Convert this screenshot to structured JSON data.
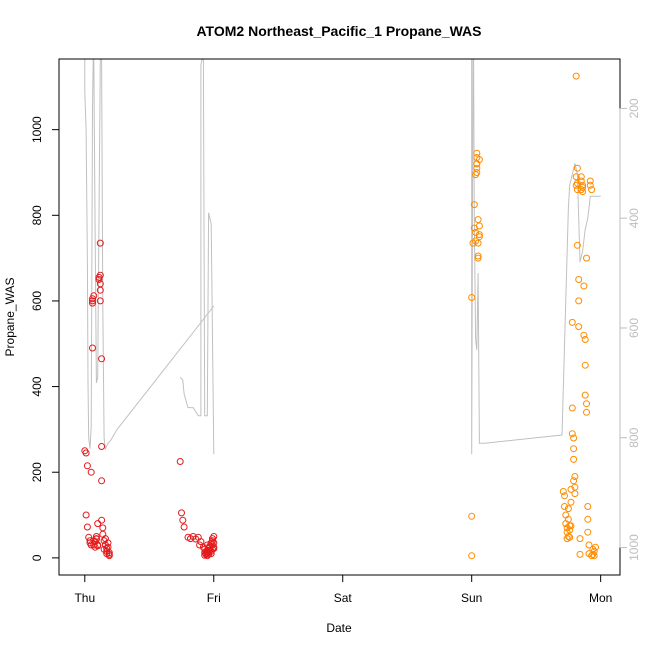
{
  "chart_data": {
    "type": "scatter",
    "title": "ATOM2 Northeast_Pacific_1 Propane_WAS",
    "xlabel": "Date",
    "ylabel": "Propane_WAS",
    "x_ticks": [
      "Thu",
      "Fri",
      "Sat",
      "Sun",
      "Mon"
    ],
    "y_ticks": [
      0,
      200,
      400,
      600,
      800,
      1000
    ],
    "y2_ticks": [
      200,
      400,
      600,
      800,
      1000
    ],
    "xlim": [
      -0.2,
      4.15
    ],
    "ylim": [
      -40,
      1165
    ],
    "y2lim": [
      1050,
      110
    ],
    "y2_reversed": true,
    "grid": false,
    "colors": {
      "red": "#e41a1c",
      "orange": "#ff8c00",
      "altitude": "#c0c0c0",
      "axis": "#000000",
      "axis2": "#bdbdbd"
    },
    "series": [
      {
        "color": "#e41a1c",
        "x": [
          0.0,
          0.01,
          0.01,
          0.02,
          0.02,
          0.03,
          0.04,
          0.04,
          0.05,
          0.05,
          0.06,
          0.06,
          0.06,
          0.06,
          0.07,
          0.07,
          0.07,
          0.08,
          0.08,
          0.09,
          0.09,
          0.09,
          0.1,
          0.1,
          0.1,
          0.11,
          0.11,
          0.12,
          0.12,
          0.12,
          0.12,
          0.12,
          0.13,
          0.13,
          0.13,
          0.13,
          0.14,
          0.14,
          0.15,
          0.15,
          0.16,
          0.16,
          0.17,
          0.17,
          0.17,
          0.18,
          0.18,
          0.19,
          0.19,
          0.19
        ],
        "y": [
          250,
          245,
          100,
          215,
          72,
          48,
          40,
          35,
          30,
          200,
          490,
          595,
          600,
          605,
          612,
          40,
          30,
          25,
          38,
          44,
          50,
          45,
          30,
          28,
          80,
          650,
          655,
          660,
          640,
          625,
          600,
          735,
          260,
          180,
          465,
          88,
          70,
          55,
          40,
          20,
          30,
          45,
          22,
          15,
          10,
          35,
          25,
          12,
          8,
          5
        ]
      },
      {
        "color": "#e41a1c",
        "x": [
          0.74,
          0.75,
          0.76,
          0.77,
          0.8,
          0.82,
          0.84,
          0.86,
          0.88,
          0.89,
          0.9,
          0.92,
          0.93,
          0.93,
          0.94,
          0.94,
          0.95,
          0.95,
          0.95,
          0.96,
          0.96,
          0.96,
          0.97,
          0.97,
          0.98,
          0.98,
          0.98,
          0.99,
          0.99,
          0.99,
          0.99,
          1.0,
          1.0,
          1.0,
          1.0,
          0.97,
          0.96,
          0.95,
          0.94,
          0.93
        ],
        "y": [
          225,
          105,
          88,
          72,
          48,
          45,
          50,
          44,
          48,
          30,
          38,
          25,
          20,
          12,
          8,
          15,
          10,
          30,
          5,
          22,
          12,
          8,
          18,
          25,
          35,
          10,
          15,
          20,
          40,
          45,
          30,
          50,
          25,
          35,
          22,
          28,
          18,
          14,
          10,
          6
        ]
      },
      {
        "color": "#ff8c00",
        "x": [
          3.0,
          3.0,
          3.0,
          3.01,
          3.02,
          3.02,
          3.03,
          3.03,
          3.03,
          3.04,
          3.04,
          3.04,
          3.04,
          3.04,
          3.04,
          3.05,
          3.05,
          3.05,
          3.05,
          3.06,
          3.06,
          3.06,
          3.06
        ],
        "y": [
          5,
          97,
          608,
          735,
          825,
          770,
          740,
          760,
          895,
          910,
          935,
          920,
          900,
          920,
          945,
          735,
          705,
          700,
          790,
          930,
          775,
          750,
          755
        ]
      },
      {
        "color": "#ff8c00",
        "x": [
          3.71,
          3.72,
          3.72,
          3.73,
          3.73,
          3.74,
          3.74,
          3.74,
          3.75,
          3.75,
          3.75,
          3.76,
          3.76,
          3.76,
          3.77,
          3.77,
          3.77,
          3.78,
          3.78,
          3.78,
          3.79,
          3.79,
          3.79,
          3.79,
          3.8,
          3.8,
          3.8,
          3.81,
          3.81,
          3.81,
          3.82,
          3.82,
          3.82,
          3.82,
          3.83,
          3.83,
          3.83,
          3.84,
          3.84,
          3.85,
          3.85,
          3.85,
          3.86,
          3.86,
          3.86,
          3.87,
          3.87,
          3.88,
          3.88,
          3.88,
          3.89,
          3.89,
          3.89,
          3.9,
          3.9,
          3.9,
          3.91,
          3.91,
          3.92,
          3.92,
          3.93,
          3.93,
          3.94,
          3.94,
          3.95,
          3.95,
          3.96
        ],
        "y": [
          155,
          145,
          120,
          100,
          80,
          70,
          60,
          45,
          50,
          115,
          90,
          75,
          65,
          48,
          75,
          130,
          160,
          550,
          350,
          290,
          280,
          255,
          230,
          180,
          150,
          165,
          190,
          1125,
          870,
          890,
          910,
          875,
          860,
          730,
          650,
          600,
          540,
          45,
          8,
          880,
          860,
          890,
          855,
          865,
          870,
          635,
          520,
          510,
          450,
          380,
          360,
          340,
          700,
          120,
          90,
          60,
          30,
          10,
          870,
          880,
          860,
          5,
          8,
          20,
          5,
          15,
          25
        ]
      }
    ],
    "altitude_series": {
      "axis": "secondary",
      "segments": [
        {
          "x": [
            0.0,
            0.0,
            0.01,
            0.02,
            0.025,
            0.03,
            0.04,
            0.05,
            0.06,
            0.065,
            0.07,
            0.08,
            0.09,
            0.1,
            0.11,
            0.12,
            0.13,
            0.14,
            0.15,
            0.16,
            0.18,
            0.2,
            0.25,
            0.3,
            0.35,
            0.4,
            0.5,
            0.6,
            0.7,
            0.8,
            0.9,
            1.0
          ],
          "y": [
            110,
            170,
            240,
            480,
            700,
            800,
            820,
            780,
            200,
            110,
            110,
            420,
            700,
            690,
            400,
            110,
            110,
            560,
            800,
            820,
            810,
            805,
            785,
            770,
            755,
            740,
            710,
            680,
            650,
            620,
            590,
            560
          ]
        },
        {
          "x": [
            0.74,
            0.76,
            0.77,
            0.8,
            0.84,
            0.88,
            0.9,
            0.9,
            0.91,
            0.92,
            0.93,
            0.95,
            0.96,
            0.98,
            1.0
          ],
          "y": [
            690,
            695,
            720,
            745,
            745,
            760,
            760,
            120,
            110,
            110,
            760,
            760,
            390,
            410,
            830
          ]
        },
        {
          "x": [
            3.0,
            3.0,
            3.01,
            3.015,
            3.02,
            3.03,
            3.04,
            3.05,
            3.06,
            3.1,
            3.3,
            3.5,
            3.7,
            3.75,
            3.76,
            3.78,
            3.8,
            3.82,
            3.84,
            3.86,
            3.88,
            3.9,
            3.92,
            3.94,
            3.96,
            3.98,
            4.0
          ],
          "y": [
            110,
            830,
            110,
            110,
            400,
            620,
            640,
            500,
            810,
            810,
            805,
            800,
            795,
            380,
            340,
            320,
            300,
            320,
            480,
            460,
            420,
            400,
            360,
            360,
            360,
            360,
            360
          ]
        }
      ]
    }
  }
}
